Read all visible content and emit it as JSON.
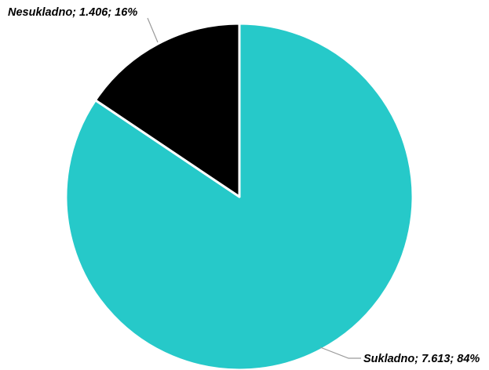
{
  "chart_data": {
    "type": "pie",
    "title": "",
    "slices": [
      {
        "name": "Sukladno",
        "value": 7613,
        "value_label": "7.613",
        "percent_label": "84%",
        "color": "#26C9C9"
      },
      {
        "name": "Nesukladno",
        "value": 1406,
        "value_label": "1.406",
        "percent_label": "16%",
        "color": "#000000"
      }
    ],
    "data_labels": {
      "sukladno": "Sukladno; 7.613; 84%",
      "nesukladno": "Nesukladno; 1.406; 16%"
    },
    "start_angle": "top",
    "direction": "clockwise",
    "slice_border_color": "#ffffff",
    "leader_line_color": "#9a9a9a",
    "legend": "none"
  }
}
